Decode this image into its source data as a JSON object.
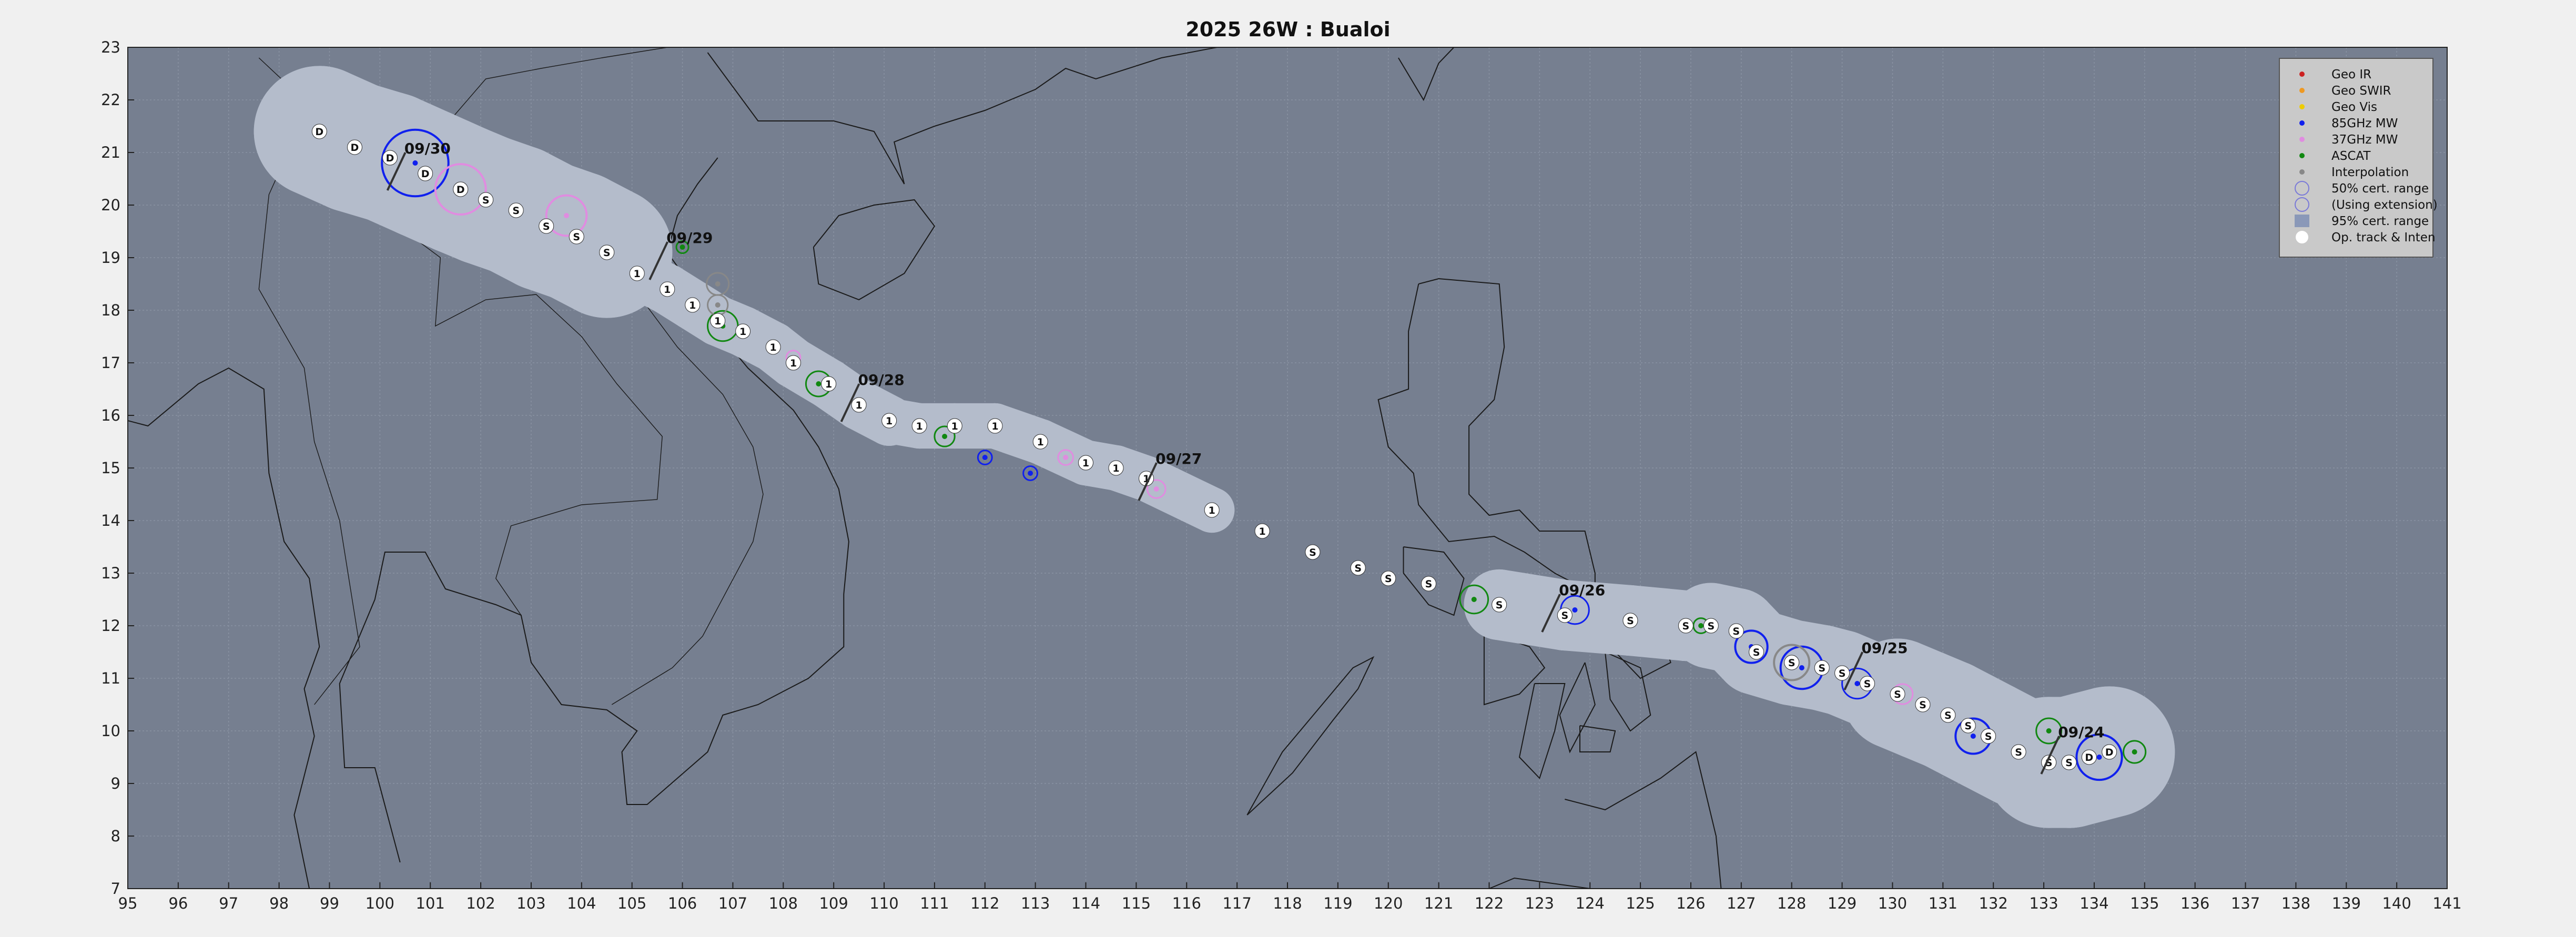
{
  "title": "2025  26W :  Bualoi",
  "map": {
    "lon_range": [
      95,
      141
    ],
    "lat_range": [
      7,
      23
    ],
    "lon_ticks": [
      "95",
      "96",
      "97",
      "98",
      "99",
      "100",
      "101",
      "102",
      "103",
      "104",
      "105",
      "106",
      "107",
      "108",
      "109",
      "110",
      "111",
      "112",
      "113",
      "114",
      "115",
      "116",
      "117",
      "118",
      "119",
      "120",
      "121",
      "122",
      "123",
      "124",
      "125",
      "126",
      "127",
      "128",
      "129",
      "130",
      "131",
      "132",
      "133",
      "134",
      "135",
      "136",
      "137",
      "138",
      "139",
      "140",
      "141"
    ],
    "lat_ticks": [
      "7",
      "8",
      "9",
      "10",
      "11",
      "12",
      "13",
      "14",
      "15",
      "16",
      "17",
      "18",
      "19",
      "20",
      "21",
      "22",
      "23"
    ],
    "colors": {
      "ocean": "#767f90",
      "cone": "#b4bccb",
      "land_line": "#1a1a1a",
      "geo_ir": "#cc2222",
      "geo_swir": "#ee9922",
      "geo_vis": "#eecc00",
      "mw85": "#1020ee",
      "mw37": "#e08ce0",
      "ascat": "#118811",
      "interp": "#888888"
    }
  },
  "date_labels": [
    {
      "text": "09/24",
      "lon": 133.2,
      "lat": 9.8
    },
    {
      "text": "09/25",
      "lon": 129.3,
      "lat": 11.4
    },
    {
      "text": "09/26",
      "lon": 123.3,
      "lat": 12.5
    },
    {
      "text": "09/27",
      "lon": 115.3,
      "lat": 15.0
    },
    {
      "text": "09/28",
      "lon": 109.4,
      "lat": 16.5
    },
    {
      "text": "09/29",
      "lon": 105.6,
      "lat": 19.2
    },
    {
      "text": "09/30",
      "lon": 100.4,
      "lat": 20.9
    }
  ],
  "track": [
    {
      "lon": 134.3,
      "lat": 9.6,
      "int": "D"
    },
    {
      "lon": 133.9,
      "lat": 9.5,
      "int": "D"
    },
    {
      "lon": 133.5,
      "lat": 9.4,
      "int": "S"
    },
    {
      "lon": 133.1,
      "lat": 9.4,
      "int": "S"
    },
    {
      "lon": 132.5,
      "lat": 9.6,
      "int": "S"
    },
    {
      "lon": 131.9,
      "lat": 9.9,
      "int": "S"
    },
    {
      "lon": 131.5,
      "lat": 10.1,
      "int": "S"
    },
    {
      "lon": 131.1,
      "lat": 10.3,
      "int": "S"
    },
    {
      "lon": 130.6,
      "lat": 10.5,
      "int": "S"
    },
    {
      "lon": 130.1,
      "lat": 10.7,
      "int": "S"
    },
    {
      "lon": 129.5,
      "lat": 10.9,
      "int": "S"
    },
    {
      "lon": 129.0,
      "lat": 11.1,
      "int": "S"
    },
    {
      "lon": 128.6,
      "lat": 11.2,
      "int": "S"
    },
    {
      "lon": 128.0,
      "lat": 11.3,
      "int": "S"
    },
    {
      "lon": 127.3,
      "lat": 11.5,
      "int": "S"
    },
    {
      "lon": 126.9,
      "lat": 11.9,
      "int": "S"
    },
    {
      "lon": 126.4,
      "lat": 12.0,
      "int": "S"
    },
    {
      "lon": 125.9,
      "lat": 12.0,
      "int": "S"
    },
    {
      "lon": 124.8,
      "lat": 12.1,
      "int": "S"
    },
    {
      "lon": 123.5,
      "lat": 12.2,
      "int": "S"
    },
    {
      "lon": 122.2,
      "lat": 12.4,
      "int": "S"
    },
    {
      "lon": 120.8,
      "lat": 12.8,
      "int": "S"
    },
    {
      "lon": 120.0,
      "lat": 12.9,
      "int": "S"
    },
    {
      "lon": 119.4,
      "lat": 13.1,
      "int": "S"
    },
    {
      "lon": 118.5,
      "lat": 13.4,
      "int": "S"
    },
    {
      "lon": 117.5,
      "lat": 13.8,
      "int": "1"
    },
    {
      "lon": 116.5,
      "lat": 14.2,
      "int": "1"
    },
    {
      "lon": 115.2,
      "lat": 14.8,
      "int": "1"
    },
    {
      "lon": 114.6,
      "lat": 15.0,
      "int": "1"
    },
    {
      "lon": 114.0,
      "lat": 15.1,
      "int": "1"
    },
    {
      "lon": 113.1,
      "lat": 15.5,
      "int": "1"
    },
    {
      "lon": 112.2,
      "lat": 15.8,
      "int": "1"
    },
    {
      "lon": 111.4,
      "lat": 15.8,
      "int": "1"
    },
    {
      "lon": 110.7,
      "lat": 15.8,
      "int": "1"
    },
    {
      "lon": 110.1,
      "lat": 15.9,
      "int": "1"
    },
    {
      "lon": 109.5,
      "lat": 16.2,
      "int": "1"
    },
    {
      "lon": 108.9,
      "lat": 16.6,
      "int": "1"
    },
    {
      "lon": 108.2,
      "lat": 17.0,
      "int": "1"
    },
    {
      "lon": 107.8,
      "lat": 17.3,
      "int": "1"
    },
    {
      "lon": 107.2,
      "lat": 17.6,
      "int": "1"
    },
    {
      "lon": 106.7,
      "lat": 17.8,
      "int": "1"
    },
    {
      "lon": 106.2,
      "lat": 18.1,
      "int": "1"
    },
    {
      "lon": 105.7,
      "lat": 18.4,
      "int": "1"
    },
    {
      "lon": 105.1,
      "lat": 18.7,
      "int": "1"
    },
    {
      "lon": 104.5,
      "lat": 19.1,
      "int": "S"
    },
    {
      "lon": 103.9,
      "lat": 19.4,
      "int": "S"
    },
    {
      "lon": 103.3,
      "lat": 19.6,
      "int": "S"
    },
    {
      "lon": 102.7,
      "lat": 19.9,
      "int": "S"
    },
    {
      "lon": 102.1,
      "lat": 20.1,
      "int": "S"
    },
    {
      "lon": 101.6,
      "lat": 20.3,
      "int": "D"
    },
    {
      "lon": 100.9,
      "lat": 20.6,
      "int": "D"
    },
    {
      "lon": 100.2,
      "lat": 20.9,
      "int": "D"
    },
    {
      "lon": 99.5,
      "lat": 21.1,
      "int": "D"
    },
    {
      "lon": 98.8,
      "lat": 21.4,
      "int": "D"
    }
  ],
  "fixes": [
    {
      "type": "mw85",
      "lon": 134.1,
      "lat": 9.5,
      "r": 0.45
    },
    {
      "type": "mw85",
      "lon": 131.6,
      "lat": 9.9,
      "r": 0.35
    },
    {
      "type": "mw85",
      "lon": 129.3,
      "lat": 10.9,
      "r": 0.3
    },
    {
      "type": "mw85",
      "lon": 128.2,
      "lat": 11.2,
      "r": 0.42
    },
    {
      "type": "mw85",
      "lon": 127.2,
      "lat": 11.6,
      "r": 0.32
    },
    {
      "type": "mw85",
      "lon": 123.7,
      "lat": 12.3,
      "r": 0.28
    },
    {
      "type": "mw85",
      "lon": 112.0,
      "lat": 15.2,
      "r": 0.14
    },
    {
      "type": "mw85",
      "lon": 112.9,
      "lat": 14.9,
      "r": 0.14
    },
    {
      "type": "mw85",
      "lon": 100.7,
      "lat": 20.8,
      "r": 0.66
    },
    {
      "type": "ascat",
      "lon": 134.8,
      "lat": 9.6,
      "r": 0.22
    },
    {
      "type": "ascat",
      "lon": 133.1,
      "lat": 10.0,
      "r": 0.25
    },
    {
      "type": "ascat",
      "lon": 121.7,
      "lat": 12.5,
      "r": 0.28
    },
    {
      "type": "ascat",
      "lon": 126.2,
      "lat": 12.0,
      "r": 0.15
    },
    {
      "type": "ascat",
      "lon": 111.2,
      "lat": 15.6,
      "r": 0.2
    },
    {
      "type": "ascat",
      "lon": 108.7,
      "lat": 16.6,
      "r": 0.25
    },
    {
      "type": "ascat",
      "lon": 106.8,
      "lat": 17.7,
      "r": 0.3
    },
    {
      "type": "ascat",
      "lon": 106.0,
      "lat": 19.2,
      "r": 0.12
    },
    {
      "type": "mw37",
      "lon": 130.2,
      "lat": 10.7,
      "r": 0.2
    },
    {
      "type": "mw37",
      "lon": 115.4,
      "lat": 14.6,
      "r": 0.18
    },
    {
      "type": "mw37",
      "lon": 113.6,
      "lat": 15.2,
      "r": 0.15
    },
    {
      "type": "mw37",
      "lon": 108.2,
      "lat": 17.1,
      "r": 0.14
    },
    {
      "type": "mw37",
      "lon": 103.7,
      "lat": 19.8,
      "r": 0.4
    },
    {
      "type": "mw37",
      "lon": 101.6,
      "lat": 20.3,
      "r": 0.5
    },
    {
      "type": "interp",
      "lon": 106.7,
      "lat": 18.5,
      "r": 0.22
    },
    {
      "type": "interp",
      "lon": 106.7,
      "lat": 18.1,
      "r": 0.2
    },
    {
      "type": "interp",
      "lon": 128.0,
      "lat": 11.3,
      "r": 0.35
    }
  ],
  "legend": {
    "items": [
      {
        "label": "Geo IR",
        "symbol": "dot",
        "color": "#cc2222"
      },
      {
        "label": "Geo SWIR",
        "symbol": "dot",
        "color": "#ee9922"
      },
      {
        "label": "Geo Vis",
        "symbol": "dot",
        "color": "#eecc00"
      },
      {
        "label": "85GHz MW",
        "symbol": "dot",
        "color": "#1020ee"
      },
      {
        "label": "37GHz MW",
        "symbol": "dot",
        "color": "#e08ce0"
      },
      {
        "label": "ASCAT",
        "symbol": "dot",
        "color": "#118811"
      },
      {
        "label": "Interpolation",
        "symbol": "dot",
        "color": "#888888"
      },
      {
        "label": "50% cert. range",
        "symbol": "ring",
        "color": "#7a7ad8"
      },
      {
        "label": "(Using extension)",
        "symbol": "ring",
        "color": "#7a7ad8"
      },
      {
        "label": "95% cert. range",
        "symbol": "patch",
        "color": "#8a98b8"
      },
      {
        "label": "Op. track & Inten",
        "symbol": "white-dot",
        "color": "#ffffff"
      }
    ]
  }
}
